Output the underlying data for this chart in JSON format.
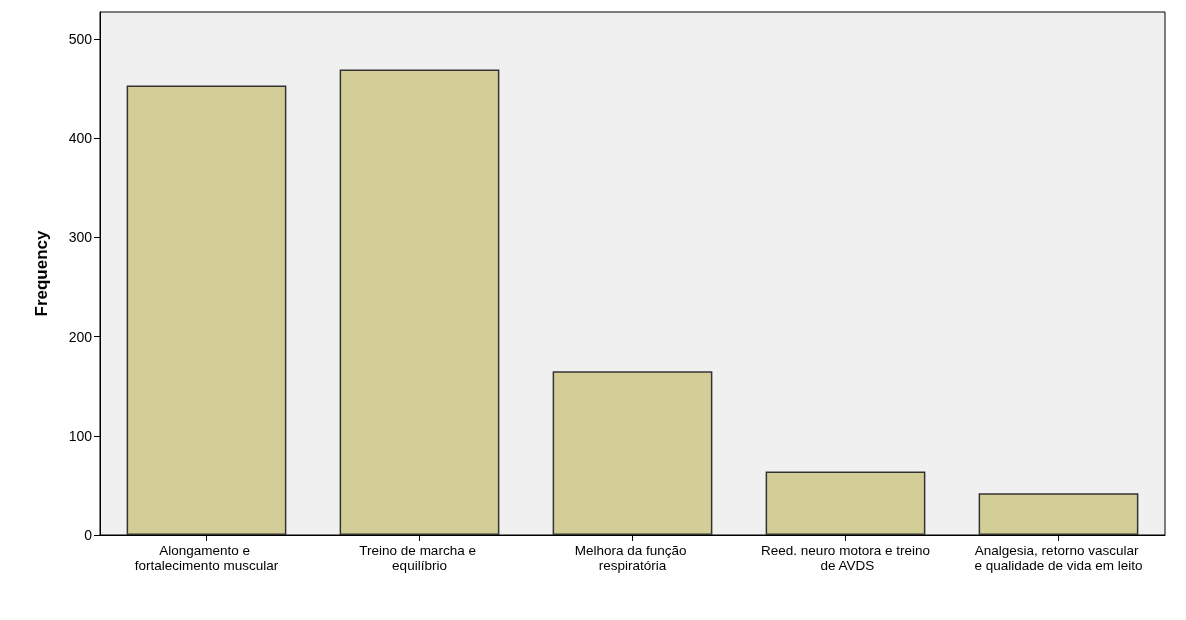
{
  "chart_data": {
    "type": "bar",
    "ylabel": "Frequency",
    "categories": [
      "Alongamento e fortalecimento muscular",
      "Treino de marcha e equilíbrio",
      "Melhora da função respiratória",
      "Reed. neuro motora e treino de AVDS",
      "Analgesia, retorno vascular e qualidade de vida em leito"
    ],
    "values": [
      453,
      469,
      165,
      64,
      42
    ],
    "color": "#d3ce97",
    "ylim": [
      0,
      527
    ],
    "yticks": [
      0,
      100,
      200,
      300,
      400,
      500
    ],
    "grid": false
  }
}
